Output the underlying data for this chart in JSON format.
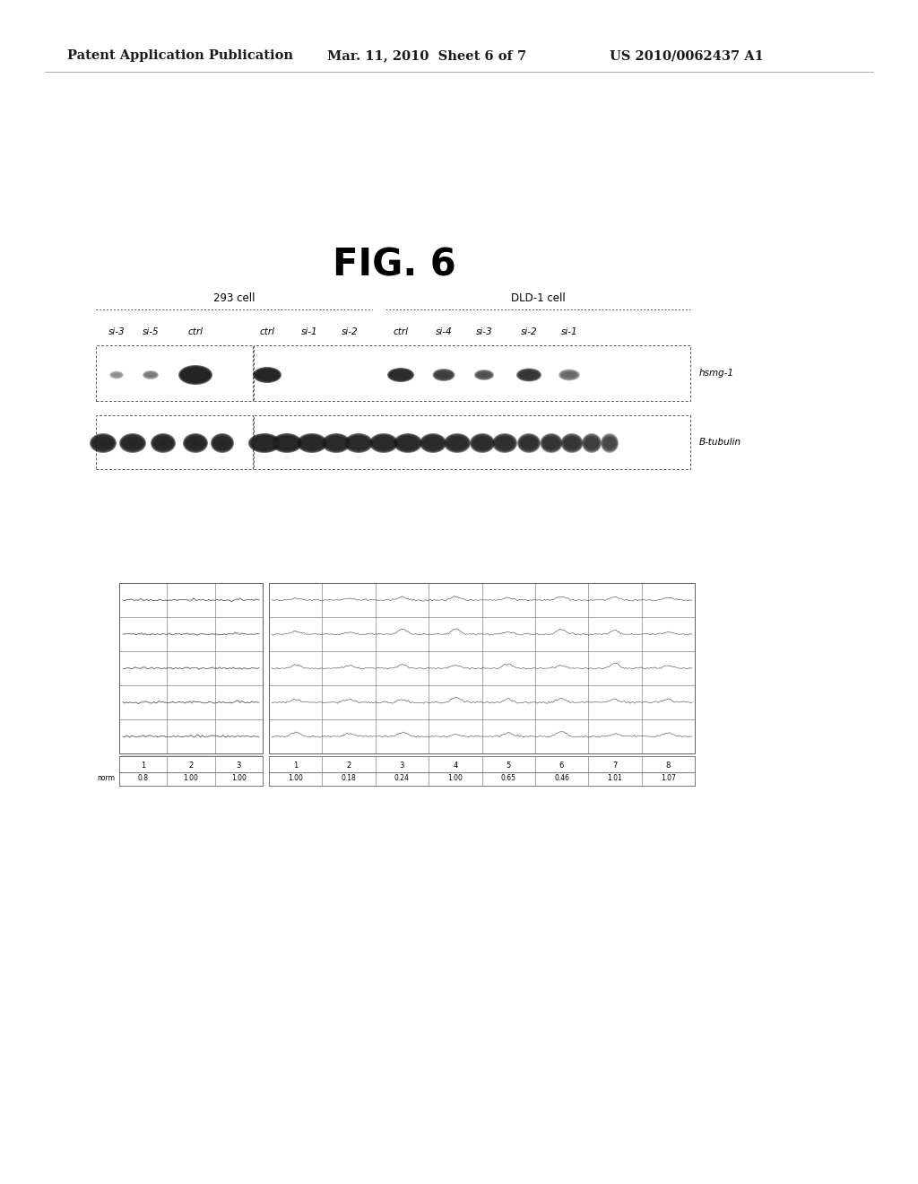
{
  "bg_color": "#ffffff",
  "page_header_left": "Patent Application Publication",
  "page_header_mid": "Mar. 11, 2010  Sheet 6 of 7",
  "page_header_right": "US 2010/0062437 A1",
  "fig_title": "FIG. 6",
  "cell_line_labels": [
    "293 cell",
    "DLD-1 cell"
  ],
  "lane_labels": [
    "si-3",
    "si-5",
    "ctrl",
    "ctrl",
    "si-1",
    "si-2",
    "ctrl",
    "si-4",
    "si-3",
    "si-2",
    "si-1"
  ],
  "blot1_label": "hsmg-1",
  "blot2_label": "B-tubulin",
  "quant_col_labels": [
    "1",
    "2",
    "3",
    "4",
    "5",
    "6",
    "7",
    "8"
  ],
  "quant_values": [
    "1.00",
    "0.18",
    "0.24",
    "1.00",
    "0.65",
    "0.46",
    "1.01",
    "1.07"
  ],
  "quant_left_col_labels": [
    "1",
    "2",
    "3"
  ],
  "quant_left_values": [
    "0.8",
    "1.00",
    "1.00"
  ],
  "quant_left_prefix": "norm"
}
